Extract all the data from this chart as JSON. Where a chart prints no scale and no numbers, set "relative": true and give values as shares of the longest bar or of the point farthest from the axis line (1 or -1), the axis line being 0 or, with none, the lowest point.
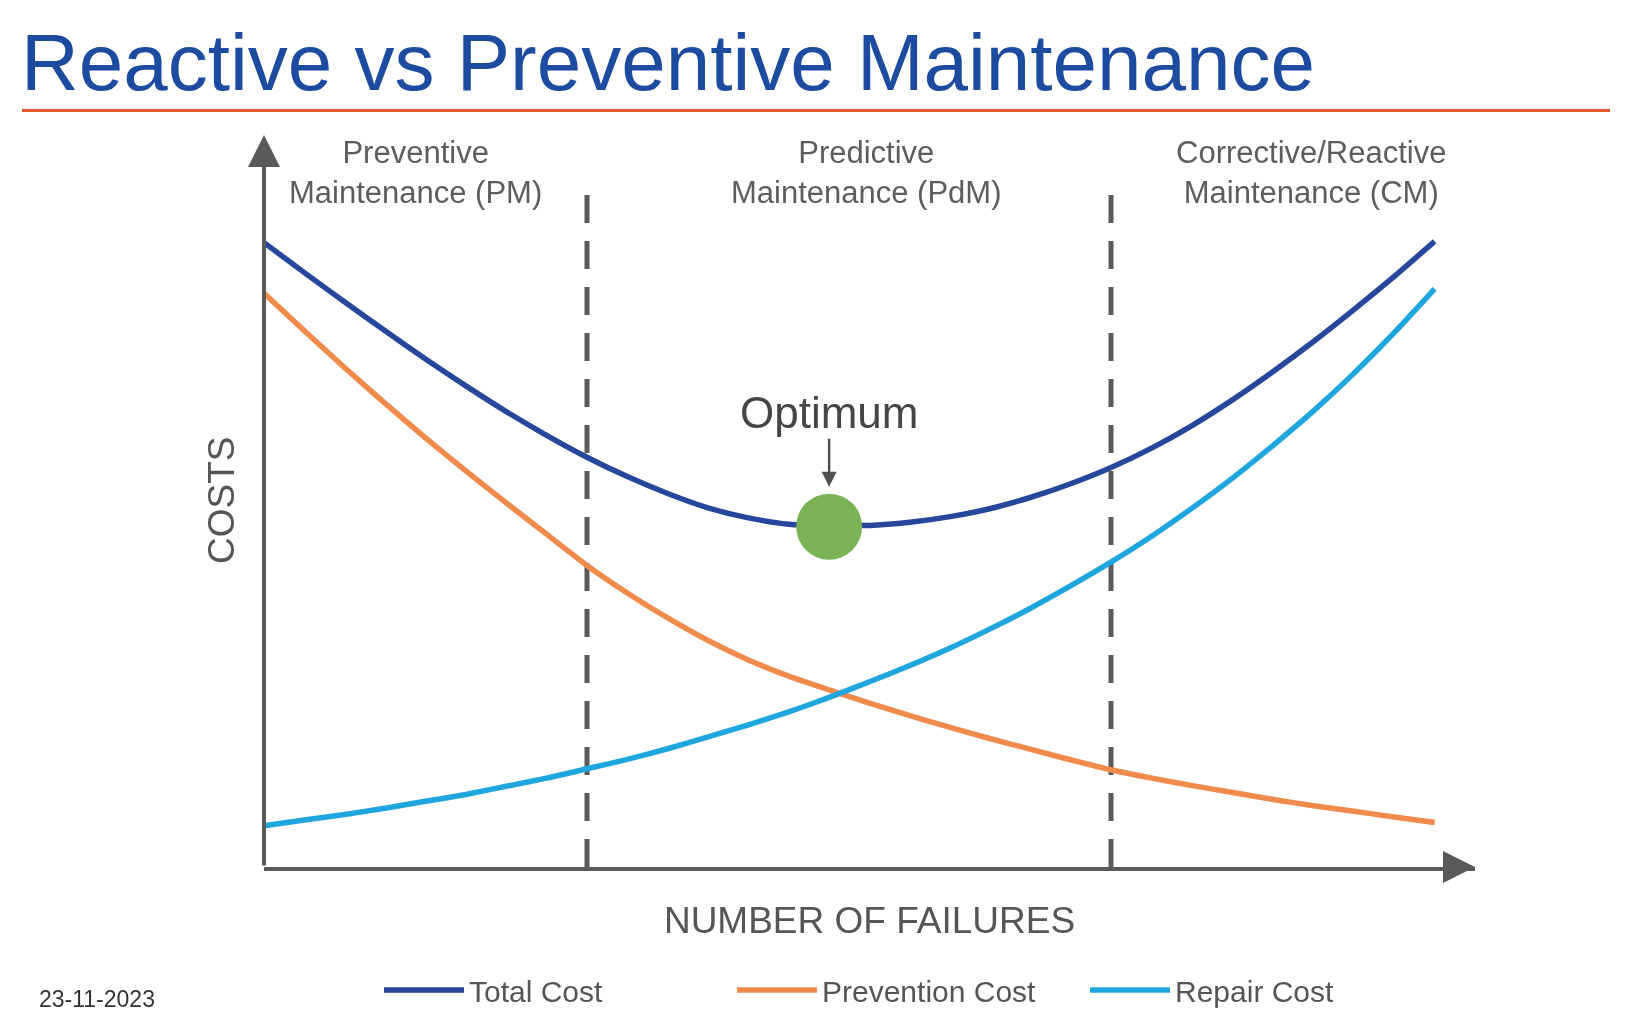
{
  "chart_data": {
    "type": "line",
    "title": "Reactive vs Preventive Maintenance",
    "xlabel": "NUMBER OF FAILURES",
    "ylabel": "COSTS",
    "relative": true,
    "tick_labels": false,
    "legend": "bottom",
    "categories": [
      null,
      null,
      null,
      null,
      null,
      null,
      null,
      null,
      null,
      null,
      null,
      null,
      null,
      null,
      null,
      null,
      null,
      null,
      null,
      null,
      null,
      null,
      null,
      null,
      null,
      null,
      null,
      null,
      null,
      null
    ],
    "series": [
      {
        "name": "Total Cost",
        "color": "#27479c",
        "values": [
          0.998,
          0.95,
          0.903,
          0.857,
          0.812,
          0.769,
          0.728,
          0.69,
          0.655,
          0.624,
          0.597,
          0.574,
          0.558,
          0.548,
          null,
          0.546,
          0.551,
          0.56,
          0.573,
          0.591,
          0.613,
          0.639,
          0.67,
          0.706,
          0.747,
          0.792,
          0.84,
          0.891,
          0.944,
          1.0
        ]
      },
      {
        "name": "Prevention Cost",
        "color": "#f08b4c",
        "values": [
          0.917,
          0.857,
          0.798,
          0.741,
          0.686,
          0.633,
          0.582,
          0.532,
          0.482,
          0.438,
          0.398,
          0.362,
          0.331,
          0.305,
          0.283,
          0.262,
          0.242,
          0.223,
          0.205,
          0.188,
          0.171,
          0.155,
          0.142,
          0.13,
          0.119,
          0.108,
          0.098,
          0.089,
          0.08,
          0.071
        ]
      },
      {
        "name": "Repair Cost",
        "color": "#1fa6de",
        "values": [
          0.066,
          0.075,
          0.084,
          0.094,
          0.105,
          0.116,
          0.129,
          0.142,
          0.157,
          0.172,
          0.189,
          0.208,
          0.227,
          0.248,
          0.271,
          0.296,
          0.322,
          0.35,
          0.381,
          0.414,
          0.45,
          0.488,
          0.529,
          0.574,
          0.622,
          0.674,
          0.729,
          0.789,
          0.854,
          0.924
        ]
      }
    ],
    "annotations": [
      "Preventive\nMaintenance (PM)",
      "Predictive\nMaintenance (PdM)",
      "Corrective/Reactive\nMaintenance (CM)",
      {
        "text": "Optimum",
        "y": 0.544
      },
      "23-11-2023"
    ]
  }
}
